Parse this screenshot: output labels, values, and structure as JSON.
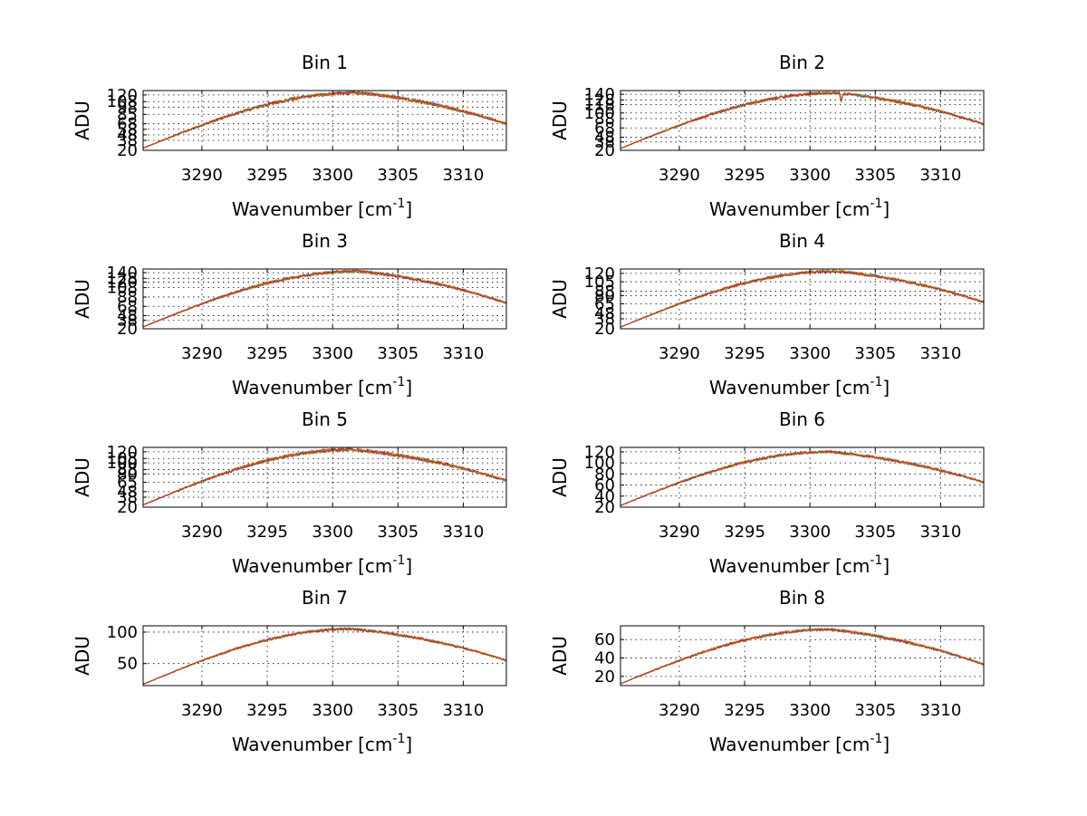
{
  "chart_data": [
    {
      "type": "line",
      "title": "Bin 1",
      "xlabel": "Wavenumber [cm",
      "xlabel_sup": "-1",
      "xlabel_close": "]",
      "ylabel": "ADU",
      "xlim": [
        3285.5,
        3313.3
      ],
      "xticks": [
        3290,
        3295,
        3300,
        3305,
        3310
      ],
      "ylim": [
        20,
        128
      ],
      "yticks": [
        20,
        38,
        48,
        58,
        68,
        85,
        98,
        108,
        120
      ],
      "curve": {
        "start": 24,
        "peak": 124,
        "peak_x": 3302,
        "end": 68,
        "noise": 3
      }
    },
    {
      "type": "line",
      "title": "Bin 2",
      "xlabel": "Wavenumber [cm",
      "xlabel_sup": "-1",
      "xlabel_close": "]",
      "ylabel": "ADU",
      "xlim": [
        3285.5,
        3313.3
      ],
      "xticks": [
        3290,
        3295,
        3300,
        3305,
        3310
      ],
      "ylim": [
        20,
        148
      ],
      "yticks": [
        20,
        38,
        48,
        68,
        88,
        100,
        118,
        128,
        140
      ],
      "curve": {
        "start": 24,
        "peak": 143,
        "peak_x": 3302,
        "end": 76,
        "noise": 3,
        "dip": {
          "x": 3302.4,
          "depth": 22
        }
      }
    },
    {
      "type": "line",
      "title": "Bin 3",
      "xlabel": "Wavenumber [cm",
      "xlabel_sup": "-1",
      "xlabel_close": "]",
      "ylabel": "ADU",
      "xlim": [
        3285.5,
        3313.3
      ],
      "xticks": [
        3290,
        3295,
        3300,
        3305,
        3310
      ],
      "ylim": [
        20,
        148
      ],
      "yticks": [
        20,
        38,
        48,
        68,
        88,
        108,
        120,
        128,
        140
      ],
      "curve": {
        "start": 24,
        "peak": 143,
        "peak_x": 3302,
        "end": 75,
        "noise": 3
      }
    },
    {
      "type": "line",
      "title": "Bin 4",
      "xlabel": "Wavenumber [cm",
      "xlabel_sup": "-1",
      "xlabel_close": "]",
      "ylabel": "ADU",
      "xlim": [
        3285.5,
        3313.3
      ],
      "xticks": [
        3290,
        3295,
        3300,
        3305,
        3310
      ],
      "ylim": [
        20,
        128
      ],
      "yticks": [
        20,
        38,
        48,
        65,
        80,
        88,
        105,
        120
      ],
      "curve": {
        "start": 23,
        "peak": 124,
        "peak_x": 3302,
        "end": 68,
        "noise": 2.5
      }
    },
    {
      "type": "line",
      "title": "Bin 5",
      "xlabel": "Wavenumber [cm",
      "xlabel_sup": "-1",
      "xlabel_close": "]",
      "ylabel": "ADU",
      "xlim": [
        3285.5,
        3313.3
      ],
      "xticks": [
        3290,
        3295,
        3300,
        3305,
        3310
      ],
      "ylim": [
        20,
        128
      ],
      "yticks": [
        20,
        38,
        48,
        65,
        80,
        88,
        100,
        108,
        120
      ],
      "curve": {
        "start": 24,
        "peak": 124,
        "peak_x": 3301.5,
        "end": 68,
        "noise": 3
      }
    },
    {
      "type": "line",
      "title": "Bin 6",
      "xlabel": "Wavenumber [cm",
      "xlabel_sup": "-1",
      "xlabel_close": "]",
      "ylabel": "ADU",
      "xlim": [
        3285.5,
        3313.3
      ],
      "xticks": [
        3290,
        3295,
        3300,
        3305,
        3310
      ],
      "ylim": [
        20,
        128
      ],
      "yticks": [
        20,
        40,
        60,
        80,
        100,
        120
      ],
      "curve": {
        "start": 23,
        "peak": 120,
        "peak_x": 3301.5,
        "end": 65,
        "noise": 2.5
      }
    },
    {
      "type": "line",
      "title": "Bin 7",
      "xlabel": "Wavenumber [cm",
      "xlabel_sup": "-1",
      "xlabel_close": "]",
      "ylabel": "ADU",
      "xlim": [
        3285.5,
        3313.3
      ],
      "xticks": [
        3290,
        3295,
        3300,
        3305,
        3310
      ],
      "ylim": [
        15,
        110
      ],
      "yticks": [
        50,
        100
      ],
      "curve": {
        "start": 17,
        "peak": 105,
        "peak_x": 3301.5,
        "end": 55,
        "noise": 2
      }
    },
    {
      "type": "line",
      "title": "Bin 8",
      "xlabel": "Wavenumber [cm",
      "xlabel_sup": "-1",
      "xlabel_close": "]",
      "ylabel": "ADU",
      "xlim": [
        3285.5,
        3313.3
      ],
      "xticks": [
        3290,
        3295,
        3300,
        3305,
        3310
      ],
      "ylim": [
        10,
        75
      ],
      "yticks": [
        20,
        40,
        60
      ],
      "curve": {
        "start": 12,
        "peak": 71,
        "peak_x": 3301.5,
        "end": 33,
        "noise": 1.5
      }
    }
  ],
  "series_colors": [
    "#1f3fd0",
    "#1a9a1a",
    "#e08a00",
    "#d01a1a"
  ]
}
